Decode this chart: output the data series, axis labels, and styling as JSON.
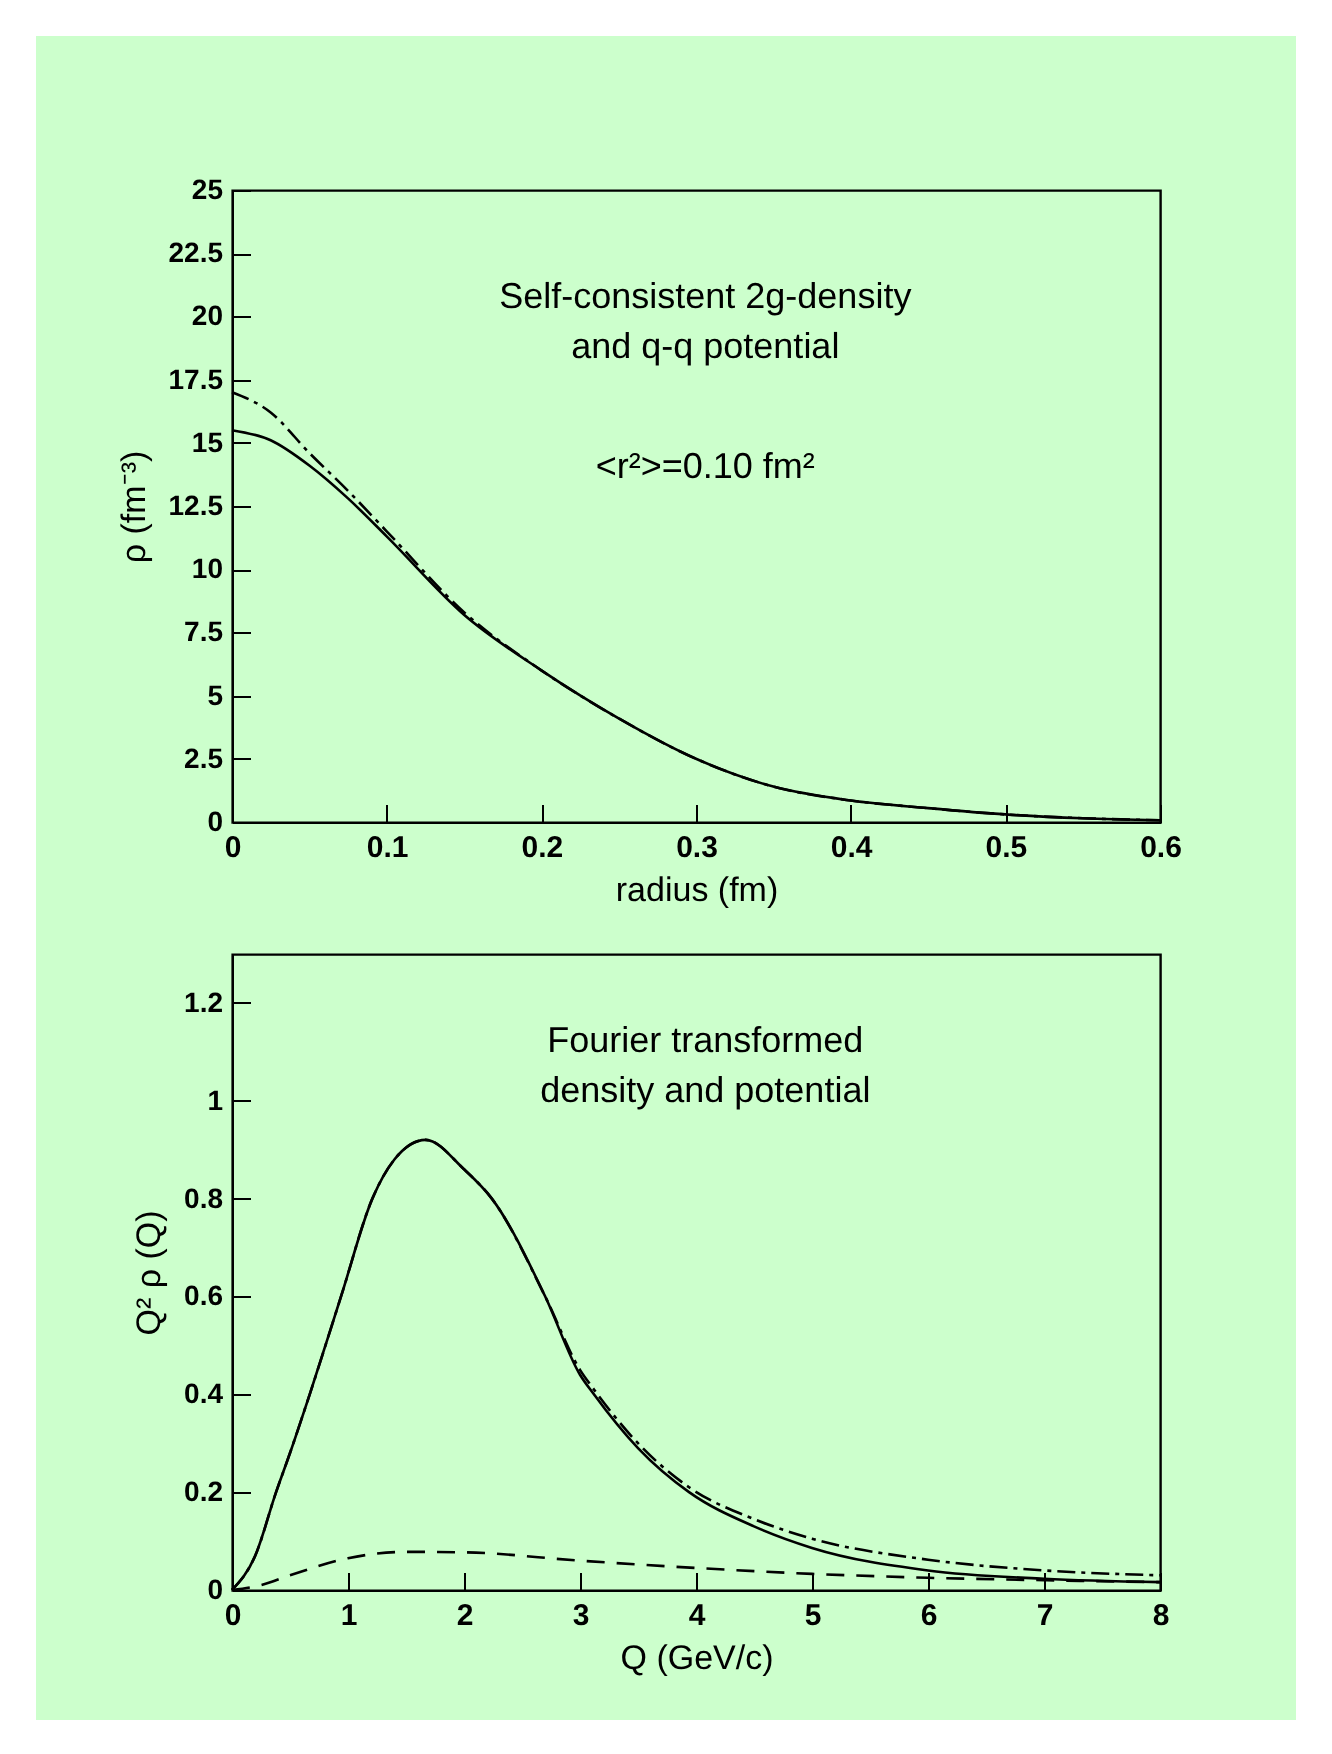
{
  "chart_data": [
    {
      "type": "line",
      "xlabel": "radius (fm)",
      "ylabel": "ρ (fm⁻³)",
      "annotations": [
        "Self-consistent 2g-density\nand q-q potential",
        "<r²>=0.10 fm²"
      ],
      "xlim": [
        0,
        0.6
      ],
      "ylim": [
        0,
        25
      ],
      "xticks": [
        0,
        0.1,
        0.2,
        0.3,
        0.4,
        0.5,
        0.6
      ],
      "yticks": [
        0,
        2.5,
        5,
        7.5,
        10,
        12.5,
        15,
        17.5,
        20,
        22.5,
        25
      ],
      "grid": false,
      "series": [
        {
          "color": "#000000",
          "line_style": "solid",
          "x": [
            0,
            0.025,
            0.05,
            0.075,
            0.1,
            0.15,
            0.2,
            0.25,
            0.3,
            0.35,
            0.4,
            0.45,
            0.5,
            0.55,
            0.6
          ],
          "values": [
            15.5,
            15.1,
            14.1,
            12.8,
            11.3,
            8.2,
            6.0,
            4.1,
            2.5,
            1.4,
            0.85,
            0.55,
            0.3,
            0.15,
            0.07
          ]
        },
        {
          "color": "#000000",
          "line_style": "dashdot",
          "x": [
            0,
            0.025,
            0.05,
            0.075,
            0.1,
            0.15,
            0.2,
            0.25,
            0.3,
            0.35,
            0.4,
            0.45,
            0.5,
            0.55,
            0.6
          ],
          "values": [
            17.0,
            16.2,
            14.6,
            13.1,
            11.5,
            8.3,
            6.0,
            4.1,
            2.5,
            1.4,
            0.85,
            0.55,
            0.3,
            0.15,
            0.07
          ]
        }
      ]
    },
    {
      "type": "line",
      "xlabel": "Q (GeV/c)",
      "ylabel": "Q² ρ (Q)",
      "annotations": [
        "Fourier transformed\ndensity and potential"
      ],
      "xlim": [
        0,
        8
      ],
      "ylim": [
        0,
        1.3
      ],
      "xticks": [
        0,
        1,
        2,
        3,
        4,
        5,
        6,
        7,
        8
      ],
      "yticks": [
        0,
        0.2,
        0.4,
        0.6,
        0.8,
        1,
        1.2
      ],
      "grid": false,
      "series": [
        {
          "color": "#000000",
          "line_style": "solid",
          "x": [
            0,
            0.2,
            0.38,
            0.5,
            0.67,
            0.94,
            1.21,
            1.4,
            1.67,
            2.0,
            2.24,
            2.7,
            3.0,
            3.12,
            3.5,
            3.94,
            4.5,
            5,
            6,
            7,
            8
          ],
          "values": [
            0,
            0.07,
            0.2,
            0.28,
            0.4,
            0.6,
            0.8,
            0.88,
            0.92,
            0.86,
            0.8,
            0.6,
            0.44,
            0.4,
            0.29,
            0.2,
            0.13,
            0.086,
            0.04,
            0.023,
            0.016
          ]
        },
        {
          "color": "#000000",
          "line_style": "dashdot",
          "x": [
            0,
            0.2,
            0.38,
            0.5,
            0.67,
            0.94,
            1.21,
            1.4,
            1.67,
            2.0,
            2.24,
            2.7,
            3.0,
            3.12,
            3.5,
            3.94,
            4.5,
            5,
            6,
            7,
            8
          ],
          "values": [
            0,
            0.07,
            0.2,
            0.28,
            0.4,
            0.6,
            0.8,
            0.88,
            0.92,
            0.86,
            0.8,
            0.6,
            0.45,
            0.41,
            0.3,
            0.21,
            0.145,
            0.105,
            0.062,
            0.04,
            0.03
          ]
        },
        {
          "color": "#000000",
          "line_style": "dashed",
          "x": [
            0,
            0.25,
            0.5,
            1,
            1.5,
            2,
            3,
            4,
            5,
            6,
            7,
            8
          ],
          "values": [
            0,
            0.01,
            0.03,
            0.065,
            0.078,
            0.077,
            0.06,
            0.045,
            0.033,
            0.025,
            0.02,
            0.016
          ]
        }
      ]
    }
  ]
}
